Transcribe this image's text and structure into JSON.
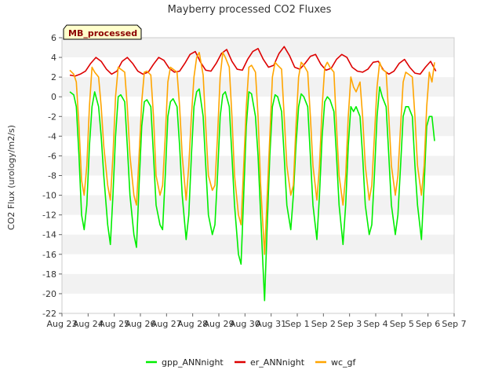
{
  "chart_data": {
    "type": "line",
    "title": "Mayberry processed CO2 Fluxes",
    "badge": "MB_processed",
    "xlabel": "",
    "ylabel": "CO2 Flux (urology/m2/s)",
    "xlim": [
      0,
      15
    ],
    "ylim": [
      -22,
      6
    ],
    "x_tick_labels": [
      "Aug 23",
      "Aug 24",
      "Aug 25",
      "Aug 26",
      "Aug 27",
      "Aug 28",
      "Aug 29",
      "Aug 30",
      "Aug 31",
      "Sep 1",
      "Sep 2",
      "Sep 3",
      "Sep 4",
      "Sep 5",
      "Sep 6",
      "Sep 7"
    ],
    "y_ticks": [
      6,
      4,
      2,
      0,
      -2,
      -4,
      -6,
      -8,
      -10,
      -12,
      -14,
      -16,
      -18,
      -20,
      -22
    ],
    "grid": "horizontal bands",
    "legend_position": "bottom",
    "series": [
      {
        "name": "gpp_ANNnight",
        "color": "#00ee00",
        "x": [
          0.3,
          0.45,
          0.55,
          0.65,
          0.75,
          0.85,
          0.95,
          1.05,
          1.15,
          1.25,
          1.4,
          1.5,
          1.6,
          1.75,
          1.85,
          1.95,
          2.05,
          2.15,
          2.25,
          2.4,
          2.5,
          2.6,
          2.75,
          2.85,
          2.95,
          3.05,
          3.15,
          3.25,
          3.4,
          3.5,
          3.6,
          3.75,
          3.85,
          3.95,
          4.05,
          4.15,
          4.25,
          4.4,
          4.5,
          4.6,
          4.75,
          4.85,
          4.95,
          5.05,
          5.15,
          5.25,
          5.4,
          5.5,
          5.6,
          5.75,
          5.85,
          5.95,
          6.05,
          6.15,
          6.25,
          6.4,
          6.5,
          6.6,
          6.75,
          6.85,
          6.95,
          7.05,
          7.15,
          7.25,
          7.4,
          7.5,
          7.6,
          7.75,
          7.85,
          7.95,
          8.05,
          8.15,
          8.25,
          8.4,
          8.5,
          8.6,
          8.75,
          8.85,
          8.95,
          9.05,
          9.15,
          9.25,
          9.4,
          9.5,
          9.6,
          9.75,
          9.85,
          9.95,
          10.05,
          10.15,
          10.25,
          10.4,
          10.5,
          10.6,
          10.75,
          10.85,
          10.95,
          11.05,
          11.15,
          11.25,
          11.4,
          11.5,
          11.6,
          11.75,
          11.85,
          11.95,
          12.05,
          12.15,
          12.25,
          12.4,
          12.5,
          12.6,
          12.75,
          12.85,
          12.95,
          13.05,
          13.15,
          13.25,
          13.4,
          13.5,
          13.6,
          13.75,
          13.85,
          13.95,
          14.05,
          14.15,
          14.25
        ],
        "values": [
          0.5,
          0.2,
          -1,
          -6,
          -12,
          -13.5,
          -11,
          -5,
          -1,
          0.5,
          -1,
          -4,
          -8,
          -13,
          -15,
          -10,
          -4,
          0,
          0.2,
          -0.5,
          -5,
          -10,
          -14,
          -15.3,
          -9,
          -3,
          -0.5,
          -0.3,
          -1,
          -6,
          -11,
          -13,
          -13.5,
          -8,
          -2,
          -0.5,
          -0.2,
          -1,
          -5,
          -10,
          -14.5,
          -12,
          -6,
          -1,
          0.5,
          0.8,
          -2,
          -7,
          -12,
          -14,
          -13,
          -8,
          -2,
          0.2,
          0.5,
          -1,
          -6,
          -11,
          -16,
          -17,
          -10,
          -3,
          0.5,
          0.3,
          -2,
          -6,
          -12,
          -20.7,
          -13,
          -6,
          -1,
          0.2,
          0,
          -1.5,
          -6,
          -11,
          -13.5,
          -10,
          -5,
          -1,
          0.3,
          0,
          -1,
          -6,
          -11,
          -14.5,
          -10,
          -4,
          -0.5,
          0,
          -0.3,
          -1.5,
          -6,
          -11,
          -15,
          -11,
          -5,
          -1,
          -1.5,
          -1,
          -2,
          -6,
          -11,
          -14,
          -13,
          -8,
          -2,
          1,
          0,
          -1,
          -6,
          -11,
          -14,
          -12,
          -7,
          -2,
          -1,
          -1,
          -2,
          -7,
          -11,
          -14.5,
          -9,
          -3,
          -2,
          -2,
          -4.5
        ]
      },
      {
        "name": "er_ANNnight",
        "color": "#dd0000",
        "x": [
          0.3,
          0.5,
          0.7,
          0.9,
          1.1,
          1.3,
          1.5,
          1.7,
          1.9,
          2.1,
          2.3,
          2.5,
          2.7,
          2.9,
          3.1,
          3.3,
          3.5,
          3.7,
          3.9,
          4.1,
          4.3,
          4.5,
          4.7,
          4.9,
          5.1,
          5.3,
          5.5,
          5.7,
          5.9,
          6.1,
          6.3,
          6.5,
          6.7,
          6.9,
          7.1,
          7.3,
          7.5,
          7.7,
          7.9,
          8.1,
          8.3,
          8.5,
          8.7,
          8.9,
          9.1,
          9.3,
          9.5,
          9.7,
          9.9,
          10.1,
          10.3,
          10.5,
          10.7,
          10.9,
          11.1,
          11.3,
          11.5,
          11.7,
          11.9,
          12.1,
          12.3,
          12.5,
          12.7,
          12.9,
          13.1,
          13.3,
          13.5,
          13.7,
          13.9,
          14.1,
          14.3
        ],
        "values": [
          2.2,
          2.1,
          2.3,
          2.6,
          3.4,
          4.0,
          3.6,
          2.8,
          2.3,
          2.6,
          3.6,
          4.0,
          3.4,
          2.6,
          2.3,
          2.5,
          3.3,
          4.0,
          3.7,
          2.9,
          2.5,
          2.6,
          3.4,
          4.3,
          4.6,
          3.5,
          2.7,
          2.6,
          3.4,
          4.4,
          4.8,
          3.6,
          2.8,
          2.7,
          3.8,
          4.6,
          4.9,
          3.8,
          3.0,
          3.2,
          4.4,
          5.1,
          4.2,
          3.0,
          2.8,
          3.4,
          4.1,
          4.3,
          3.3,
          2.7,
          2.9,
          3.8,
          4.3,
          4.0,
          3.0,
          2.6,
          2.5,
          2.8,
          3.5,
          3.6,
          2.7,
          2.3,
          2.6,
          3.4,
          3.8,
          3.0,
          2.4,
          2.3,
          3.0,
          3.6,
          2.6
        ]
      },
      {
        "name": "wc_gf",
        "color": "#ffa500",
        "x": [
          0.3,
          0.45,
          0.55,
          0.65,
          0.75,
          0.85,
          0.95,
          1.05,
          1.15,
          1.25,
          1.4,
          1.5,
          1.6,
          1.75,
          1.85,
          1.95,
          2.05,
          2.15,
          2.25,
          2.4,
          2.5,
          2.6,
          2.75,
          2.85,
          2.95,
          3.05,
          3.15,
          3.25,
          3.4,
          3.5,
          3.6,
          3.75,
          3.85,
          3.95,
          4.05,
          4.15,
          4.25,
          4.4,
          4.5,
          4.6,
          4.75,
          4.85,
          4.95,
          5.05,
          5.15,
          5.25,
          5.4,
          5.5,
          5.6,
          5.75,
          5.85,
          5.95,
          6.05,
          6.15,
          6.25,
          6.4,
          6.5,
          6.6,
          6.75,
          6.85,
          6.95,
          7.05,
          7.15,
          7.25,
          7.4,
          7.5,
          7.6,
          7.75,
          7.85,
          7.95,
          8.05,
          8.15,
          8.25,
          8.4,
          8.5,
          8.6,
          8.75,
          8.85,
          8.95,
          9.05,
          9.15,
          9.25,
          9.4,
          9.5,
          9.6,
          9.75,
          9.85,
          9.95,
          10.05,
          10.15,
          10.25,
          10.4,
          10.5,
          10.6,
          10.75,
          10.85,
          10.95,
          11.05,
          11.15,
          11.25,
          11.4,
          11.5,
          11.6,
          11.75,
          11.85,
          11.95,
          12.05,
          12.15,
          12.25,
          12.4,
          12.5,
          12.6,
          12.75,
          12.85,
          12.95,
          13.05,
          13.15,
          13.25,
          13.4,
          13.5,
          13.6,
          13.75,
          13.85,
          13.95,
          14.05,
          14.15,
          14.25
        ],
        "values": [
          2.7,
          2.3,
          1.5,
          -3,
          -8.5,
          -10,
          -7,
          -1,
          3,
          2.5,
          2,
          -1,
          -5,
          -9,
          -10.5,
          -6,
          0,
          3,
          2.8,
          2.5,
          -1,
          -6,
          -10,
          -11,
          -6,
          -0.5,
          2.5,
          2.6,
          2.2,
          -2,
          -8,
          -10,
          -9,
          -4,
          1.5,
          3,
          2.8,
          2.5,
          -1,
          -6,
          -10.5,
          -7,
          -2,
          2,
          4,
          4.5,
          2.2,
          -3,
          -8,
          -9.5,
          -9,
          -4,
          2,
          4.5,
          4,
          3,
          -2,
          -8,
          -12,
          -13,
          -7,
          -1,
          3,
          3.2,
          2.5,
          -2,
          -9,
          -16,
          -10,
          -4,
          2,
          3.5,
          3.2,
          2.8,
          -2,
          -7,
          -10,
          -9,
          -3,
          2,
          3.5,
          3.2,
          2.5,
          -2,
          -7,
          -10.5,
          -7,
          -1,
          3,
          3.5,
          3,
          2.5,
          -3,
          -8,
          -11,
          -8,
          -2,
          2,
          1,
          0.5,
          1.5,
          -2,
          -7,
          -10.5,
          -9,
          -4,
          1,
          3.5,
          2.8,
          2.5,
          -2,
          -7,
          -10,
          -8,
          -3,
          1.5,
          2.5,
          2.3,
          2,
          -2,
          -7,
          -10,
          -7,
          -1,
          2.5,
          1.5,
          3.5
        ]
      }
    ]
  }
}
